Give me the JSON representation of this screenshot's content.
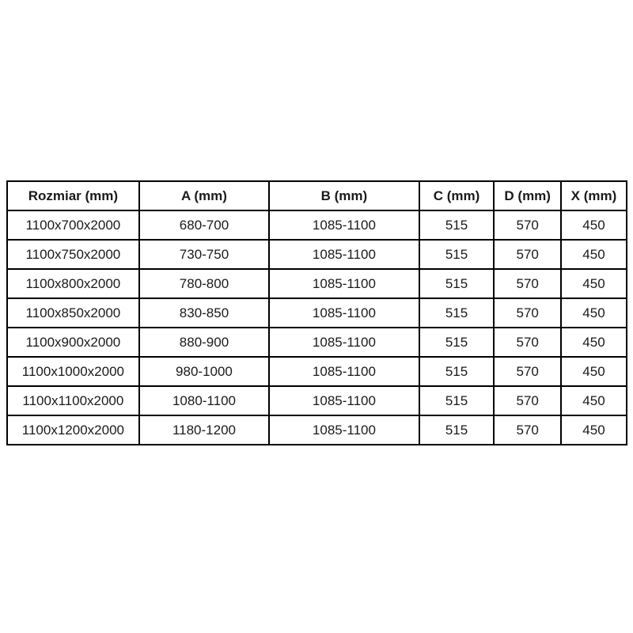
{
  "table": {
    "columns": [
      "Rozmiar (mm)",
      "A (mm)",
      "B (mm)",
      "C (mm)",
      "D (mm)",
      "X (mm)"
    ],
    "rows": [
      [
        "1100x700x2000",
        "680-700",
        "1085-1100",
        "515",
        "570",
        "450"
      ],
      [
        "1100x750x2000",
        "730-750",
        "1085-1100",
        "515",
        "570",
        "450"
      ],
      [
        "1100x800x2000",
        "780-800",
        "1085-1100",
        "515",
        "570",
        "450"
      ],
      [
        "1100x850x2000",
        "830-850",
        "1085-1100",
        "515",
        "570",
        "450"
      ],
      [
        "1100x900x2000",
        "880-900",
        "1085-1100",
        "515",
        "570",
        "450"
      ],
      [
        "1100x1000x2000",
        "980-1000",
        "1085-1100",
        "515",
        "570",
        "450"
      ],
      [
        "1100x1100x2000",
        "1080-1100",
        "1085-1100",
        "515",
        "570",
        "450"
      ],
      [
        "1100x1200x2000",
        "1180-1200",
        "1085-1100",
        "515",
        "570",
        "450"
      ]
    ]
  },
  "colors": {
    "border": "#000000",
    "text": "#1a1a1a",
    "background": "#ffffff"
  }
}
